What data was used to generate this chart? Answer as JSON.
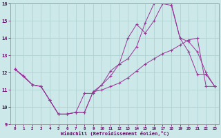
{
  "xlabel": "Windchill (Refroidissement éolien,°C)",
  "bg_color": "#cce8e8",
  "grid_color": "#aacece",
  "line_color": "#993399",
  "xlim": [
    -0.5,
    23.5
  ],
  "ylim": [
    9,
    16
  ],
  "xticks": [
    0,
    1,
    2,
    3,
    4,
    5,
    6,
    7,
    8,
    9,
    10,
    11,
    12,
    13,
    14,
    15,
    16,
    17,
    18,
    19,
    20,
    21,
    22,
    23
  ],
  "yticks": [
    9,
    10,
    11,
    12,
    13,
    14,
    15,
    16
  ],
  "series1_x": [
    0,
    1,
    2,
    3,
    4,
    5,
    6,
    7,
    8,
    9,
    10,
    11,
    12,
    13,
    14,
    15,
    16,
    17,
    18,
    19,
    20,
    21,
    22,
    23
  ],
  "series1_y": [
    12.2,
    11.8,
    11.3,
    11.2,
    10.4,
    9.6,
    9.6,
    9.7,
    9.7,
    10.9,
    11.0,
    11.2,
    11.4,
    11.7,
    12.1,
    12.5,
    12.8,
    13.1,
    13.3,
    13.6,
    13.9,
    14.0,
    11.2,
    11.2
  ],
  "series2_x": [
    0,
    2,
    3,
    4,
    5,
    6,
    7,
    8,
    9,
    10,
    11,
    12,
    13,
    14,
    15,
    16,
    17,
    18,
    19,
    20,
    21,
    22,
    23
  ],
  "series2_y": [
    12.2,
    11.3,
    11.2,
    10.4,
    9.6,
    9.6,
    9.7,
    10.8,
    10.8,
    11.3,
    12.1,
    12.5,
    14.0,
    14.8,
    14.3,
    15.0,
    16.0,
    15.9,
    14.0,
    13.2,
    11.9,
    11.9,
    11.2
  ],
  "series3_x": [
    0,
    1,
    2,
    3,
    4,
    5,
    6,
    7,
    8,
    9,
    10,
    11,
    12,
    13,
    14,
    15,
    16,
    17,
    18,
    19,
    20,
    21,
    22,
    23
  ],
  "series3_y": [
    12.2,
    11.8,
    11.3,
    11.2,
    10.4,
    9.6,
    9.6,
    9.7,
    9.7,
    10.9,
    11.3,
    11.8,
    12.5,
    12.8,
    13.5,
    14.9,
    16.0,
    16.0,
    16.0,
    14.0,
    13.8,
    13.2,
    12.0,
    11.2
  ]
}
